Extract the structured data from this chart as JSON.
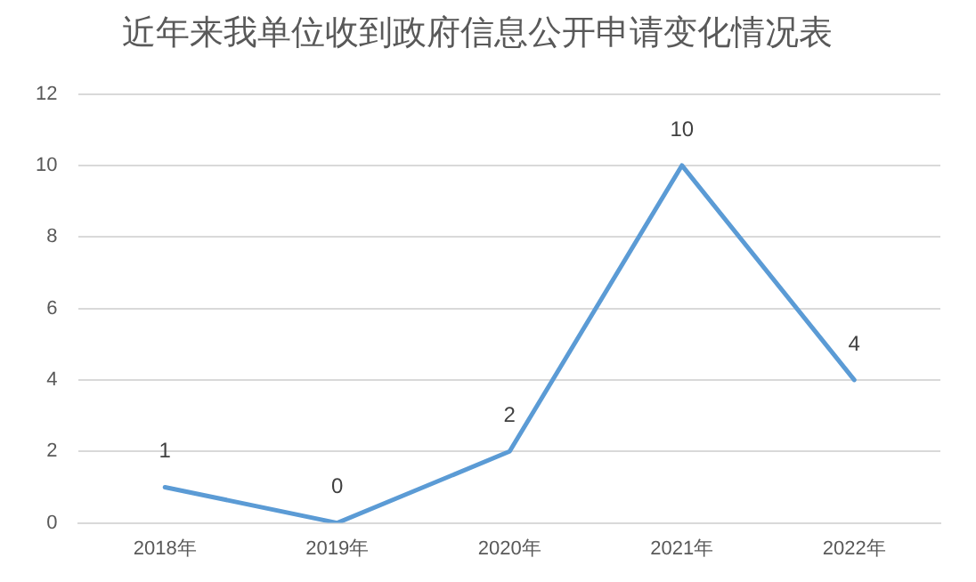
{
  "chart_data": {
    "type": "line",
    "title": "近年来我单位收到政府信息公开申请变化情况表",
    "categories": [
      "2018年",
      "2019年",
      "2020年",
      "2021年",
      "2022年"
    ],
    "series": [
      {
        "color": "#5b9bd5",
        "values": [
          1,
          0,
          2,
          10,
          4
        ]
      }
    ],
    "ylim": [
      0,
      12
    ],
    "yticks": [
      0,
      2,
      4,
      6,
      8,
      10,
      12
    ],
    "grid": "y",
    "legend": false,
    "marker": "none",
    "line_style": "solid",
    "data_labels": true
  }
}
